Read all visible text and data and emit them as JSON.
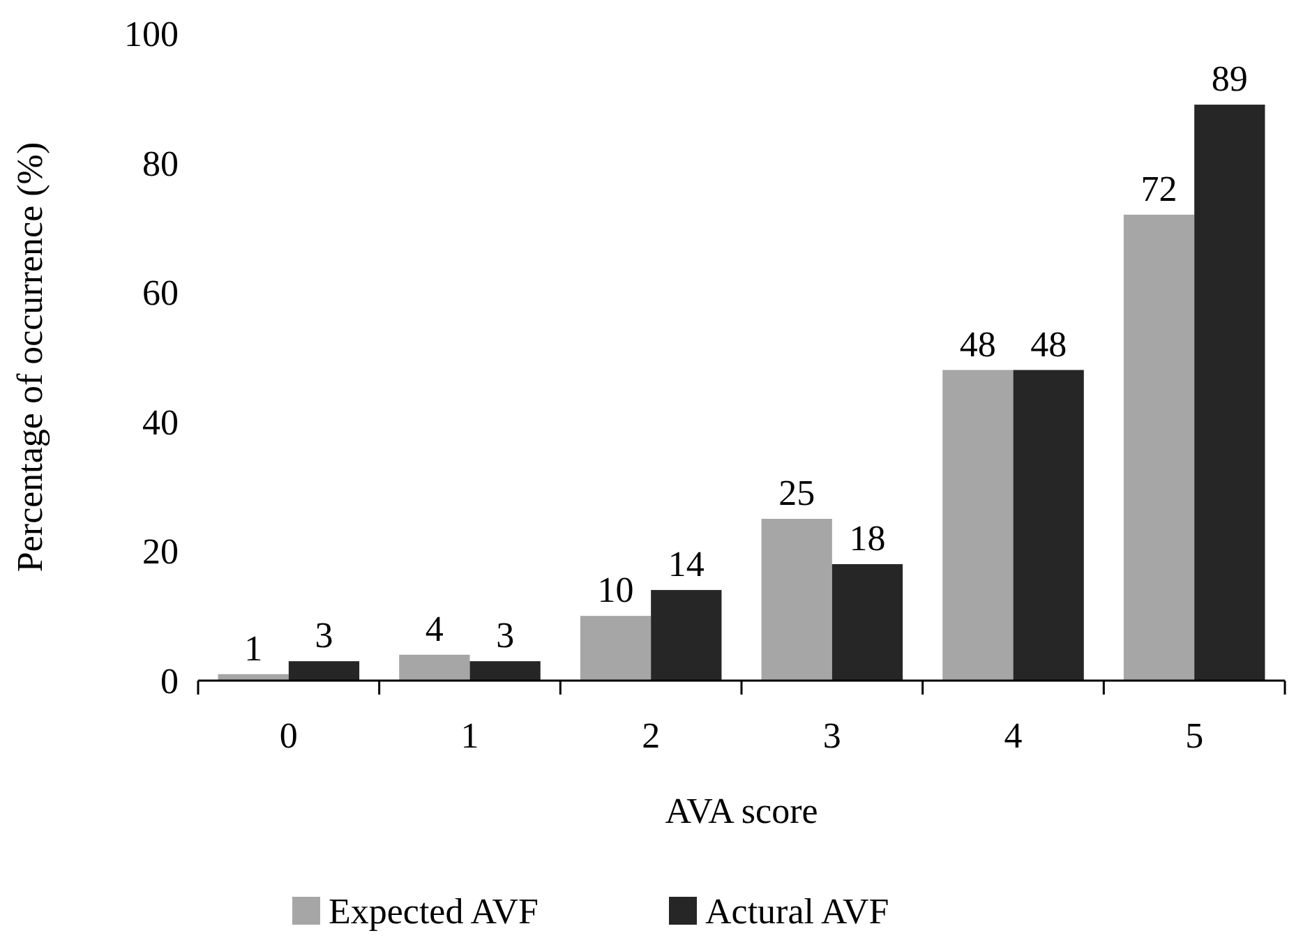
{
  "chart_data": {
    "type": "bar",
    "xlabel": "AVA score",
    "ylabel": "Percentage of occurrence (%)",
    "categories": [
      "0",
      "1",
      "2",
      "3",
      "4",
      "5"
    ],
    "series": [
      {
        "name": "Expected AVF",
        "color": "#a6a6a6",
        "values": [
          1,
          4,
          10,
          25,
          48,
          72
        ]
      },
      {
        "name": "Actural AVF",
        "color": "#262626",
        "values": [
          3,
          3,
          14,
          18,
          48,
          89
        ]
      }
    ],
    "ylim": [
      0,
      100
    ],
    "yticks": [
      0,
      20,
      40,
      60,
      80,
      100
    ],
    "data_labels": true,
    "legend": "bottom",
    "grid": false
  }
}
